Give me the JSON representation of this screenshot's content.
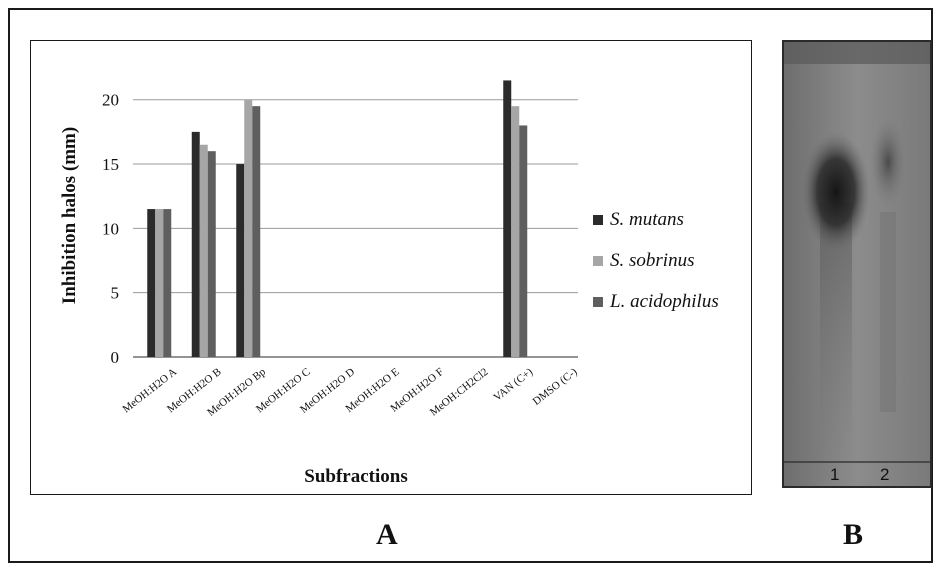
{
  "chart_data": {
    "type": "bar",
    "categories": [
      "MeOH:H2O A",
      "MeOH:H2O B",
      "MeOH:H2O Bp",
      "MeOH:H2O C",
      "MeOH:H2O D",
      "MeOH:H2O E",
      "MeOH:H2O F",
      "MeOH:CH2Cl2",
      "VAN (C+)",
      "DMSO (C-)"
    ],
    "series": [
      {
        "name": "S. mutans",
        "values": [
          11.5,
          17.5,
          15,
          0,
          0,
          0,
          0,
          0,
          21.5,
          0
        ],
        "color": "#2b2b2b"
      },
      {
        "name": "S. sobrinus",
        "values": [
          11.5,
          16.5,
          20,
          0,
          0,
          0,
          0,
          0,
          19.5,
          0
        ],
        "color": "#a6a6a6"
      },
      {
        "name": "L. acidophilus",
        "values": [
          11.5,
          16,
          19.5,
          0,
          0,
          0,
          0,
          0,
          18,
          0
        ],
        "color": "#5f5f5f"
      }
    ],
    "xlabel": "Subfractions",
    "ylabel": "Inhibition halos (mm)",
    "ylim": [
      0,
      22
    ],
    "yticks": [
      0,
      5,
      10,
      15,
      20
    ],
    "grid": true,
    "legend_position": "right"
  },
  "panels": {
    "a_label": "A",
    "b_label": "B"
  },
  "tlc": {
    "lane_labels": [
      "1",
      "2"
    ]
  }
}
